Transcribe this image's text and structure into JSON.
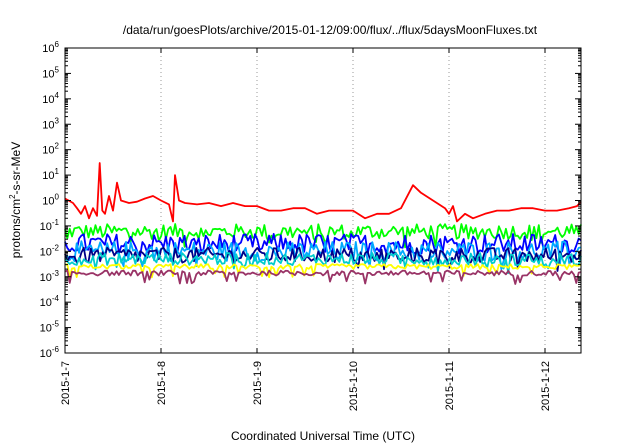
{
  "chart_data": {
    "type": "line",
    "title": "/data/run/goesPlots/archive/2015-01-12/09:00/flux/../flux/5daysMoonFluxes.txt",
    "xlabel": "Coordinated Universal Time (UTC)",
    "ylabel_parts": {
      "pre": "protons/cm",
      "sup": "2",
      "post": "-s-sr-MeV"
    },
    "y_scale": "log",
    "ylim": [
      1e-06,
      1000000.0
    ],
    "y_ticks": [
      {
        "base": "10",
        "exp": "-6"
      },
      {
        "base": "10",
        "exp": "-5"
      },
      {
        "base": "10",
        "exp": "-4"
      },
      {
        "base": "10",
        "exp": "-3"
      },
      {
        "base": "10",
        "exp": "-2"
      },
      {
        "base": "10",
        "exp": "-1"
      },
      {
        "base": "10",
        "exp": "0"
      },
      {
        "base": "10",
        "exp": "1"
      },
      {
        "base": "10",
        "exp": "2"
      },
      {
        "base": "10",
        "exp": "3"
      },
      {
        "base": "10",
        "exp": "4"
      },
      {
        "base": "10",
        "exp": "5"
      },
      {
        "base": "10",
        "exp": "6"
      }
    ],
    "xlim": [
      "2015-01-07 00:00",
      "2015-01-12 09:00"
    ],
    "x_ticks": [
      "2015-1-7",
      "2015-1-8",
      "2015-1-9",
      "2015-1-10",
      "2015-1-11",
      "2015-1-12"
    ],
    "grid": {
      "vertical": true,
      "horizontal": false,
      "style": "dotted"
    },
    "legend": "none",
    "series": [
      {
        "color": "#ff0000",
        "points": [
          [
            "2015-01-07 00:00",
            1.2
          ],
          [
            "2015-01-07 02:00",
            0.8
          ],
          [
            "2015-01-07 03:00",
            0.5
          ],
          [
            "2015-01-07 04:00",
            0.3
          ],
          [
            "2015-01-07 05:00",
            0.6
          ],
          [
            "2015-01-07 06:00",
            0.2
          ],
          [
            "2015-01-07 07:00",
            0.5
          ],
          [
            "2015-01-07 08:00",
            0.25
          ],
          [
            "2015-01-07 08:40",
            30
          ],
          [
            "2015-01-07 09:20",
            0.4
          ],
          [
            "2015-01-07 10:00",
            0.3
          ],
          [
            "2015-01-07 11:00",
            1.5
          ],
          [
            "2015-01-07 12:00",
            0.4
          ],
          [
            "2015-01-07 13:00",
            5
          ],
          [
            "2015-01-07 14:00",
            1.0
          ],
          [
            "2015-01-07 16:00",
            0.8
          ],
          [
            "2015-01-07 18:00",
            0.9
          ],
          [
            "2015-01-07 20:00",
            1.2
          ],
          [
            "2015-01-07 22:00",
            1.5
          ],
          [
            "2015-01-08 00:00",
            1.0
          ],
          [
            "2015-01-08 02:00",
            0.7
          ],
          [
            "2015-01-08 03:00",
            0.15
          ],
          [
            "2015-01-08 03:30",
            10
          ],
          [
            "2015-01-08 04:30",
            1.0
          ],
          [
            "2015-01-08 06:00",
            0.8
          ],
          [
            "2015-01-08 09:00",
            0.7
          ],
          [
            "2015-01-08 12:00",
            0.8
          ],
          [
            "2015-01-08 15:00",
            0.6
          ],
          [
            "2015-01-08 18:00",
            0.8
          ],
          [
            "2015-01-08 21:00",
            0.6
          ],
          [
            "2015-01-09 00:00",
            0.6
          ],
          [
            "2015-01-09 03:00",
            0.4
          ],
          [
            "2015-01-09 06:00",
            0.4
          ],
          [
            "2015-01-09 09:00",
            0.5
          ],
          [
            "2015-01-09 12:00",
            0.5
          ],
          [
            "2015-01-09 15:00",
            0.3
          ],
          [
            "2015-01-09 18:00",
            0.4
          ],
          [
            "2015-01-09 21:00",
            0.4
          ],
          [
            "2015-01-10 00:00",
            0.4
          ],
          [
            "2015-01-10 03:00",
            0.2
          ],
          [
            "2015-01-10 06:00",
            0.3
          ],
          [
            "2015-01-10 09:00",
            0.3
          ],
          [
            "2015-01-10 12:00",
            0.5
          ],
          [
            "2015-01-10 15:00",
            4
          ],
          [
            "2015-01-10 17:00",
            2
          ],
          [
            "2015-01-10 20:00",
            1.0
          ],
          [
            "2015-01-10 23:00",
            0.5
          ],
          [
            "2015-01-11 00:00",
            0.3
          ],
          [
            "2015-01-11 01:00",
            0.6
          ],
          [
            "2015-01-11 02:00",
            0.15
          ],
          [
            "2015-01-11 04:00",
            0.3
          ],
          [
            "2015-01-11 06:00",
            0.2
          ],
          [
            "2015-01-11 09:00",
            0.3
          ],
          [
            "2015-01-11 12:00",
            0.4
          ],
          [
            "2015-01-11 15:00",
            0.4
          ],
          [
            "2015-01-11 18:00",
            0.5
          ],
          [
            "2015-01-11 21:00",
            0.5
          ],
          [
            "2015-01-12 00:00",
            0.4
          ],
          [
            "2015-01-12 03:00",
            0.4
          ],
          [
            "2015-01-12 06:00",
            0.5
          ],
          [
            "2015-01-12 08:00",
            0.6
          ],
          [
            "2015-01-12 09:00",
            0.9
          ]
        ]
      },
      {
        "color": "#00ff00",
        "base": 0.06,
        "spread": 0.15
      },
      {
        "color": "#0000ff",
        "base": 0.02,
        "spread": 0.2
      },
      {
        "color": "#00aaff",
        "base": 0.01,
        "spread": 0.2
      },
      {
        "color": "#000088",
        "base": 0.007,
        "spread": 0.15
      },
      {
        "color": "#00cccc",
        "base": 0.005,
        "spread": 0.12
      },
      {
        "color": "#ffff00",
        "base": 0.0025,
        "spread": 0.05
      },
      {
        "color": "#993366",
        "base": 0.0014,
        "spread": 0.05
      }
    ]
  }
}
